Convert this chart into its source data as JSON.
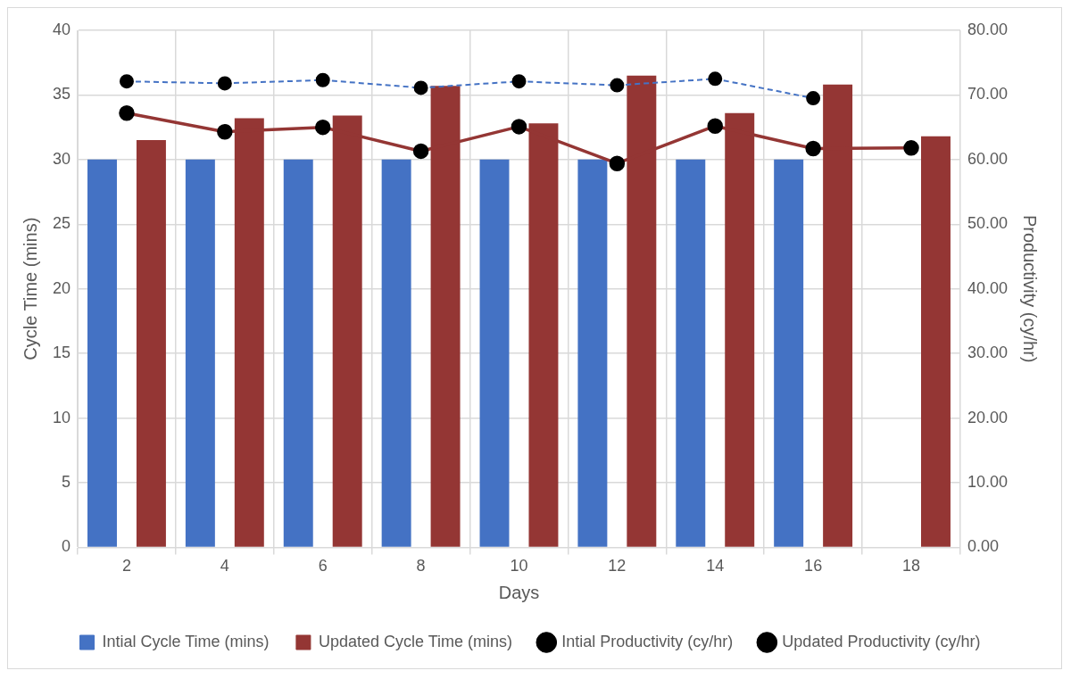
{
  "chart_data": {
    "type": "bar",
    "xlabel": "Days",
    "ylabel": "Cycle Time (mins)",
    "y2label": "Productivity (cy/hr)",
    "categories": [
      "2",
      "4",
      "6",
      "8",
      "10",
      "12",
      "14",
      "16",
      "18"
    ],
    "series": [
      {
        "name": "Intial Cycle Time (mins)",
        "color": "#4472c4",
        "values": [
          30,
          30,
          30,
          30,
          30,
          30,
          30,
          30,
          null
        ]
      },
      {
        "name": "Updated Cycle Time (mins)",
        "color": "#943634",
        "values": [
          31.5,
          33.2,
          33.4,
          35.7,
          32.8,
          36.5,
          33.6,
          35.8,
          31.8
        ]
      },
      {
        "name": "Intial Productivity (cy/hr)",
        "type": "line",
        "axis": "y2",
        "color": "#4472c4",
        "line_style": "dashed",
        "marker": "circle",
        "values": [
          72.1,
          71.8,
          72.3,
          71.1,
          72.1,
          71.5,
          72.5,
          69.5,
          null
        ]
      },
      {
        "name": "Updated Productivity (cy/hr)",
        "type": "line",
        "axis": "y2",
        "color": "#943634",
        "line_style": "solid",
        "marker": "circle",
        "values": [
          67.2,
          64.3,
          65.0,
          61.3,
          65.1,
          59.4,
          65.2,
          61.7,
          61.8
        ]
      }
    ],
    "ylim": [
      0,
      40
    ],
    "yticks": [
      0,
      5,
      10,
      15,
      20,
      25,
      30,
      35,
      40
    ],
    "y2lim": [
      0,
      80
    ],
    "y2ticks": [
      {
        "value": 0,
        "label": "0.00"
      },
      {
        "value": 10,
        "label": "10.00"
      },
      {
        "value": 20,
        "label": "20.00"
      },
      {
        "value": 30,
        "label": "30.00"
      },
      {
        "value": 40,
        "label": "40.00"
      },
      {
        "value": 50,
        "label": "50.00"
      },
      {
        "value": 60,
        "label": "60.00"
      },
      {
        "value": 70,
        "label": "70.00"
      },
      {
        "value": 80,
        "label": "80.00"
      }
    ],
    "grid": true,
    "legend": "bottom"
  }
}
